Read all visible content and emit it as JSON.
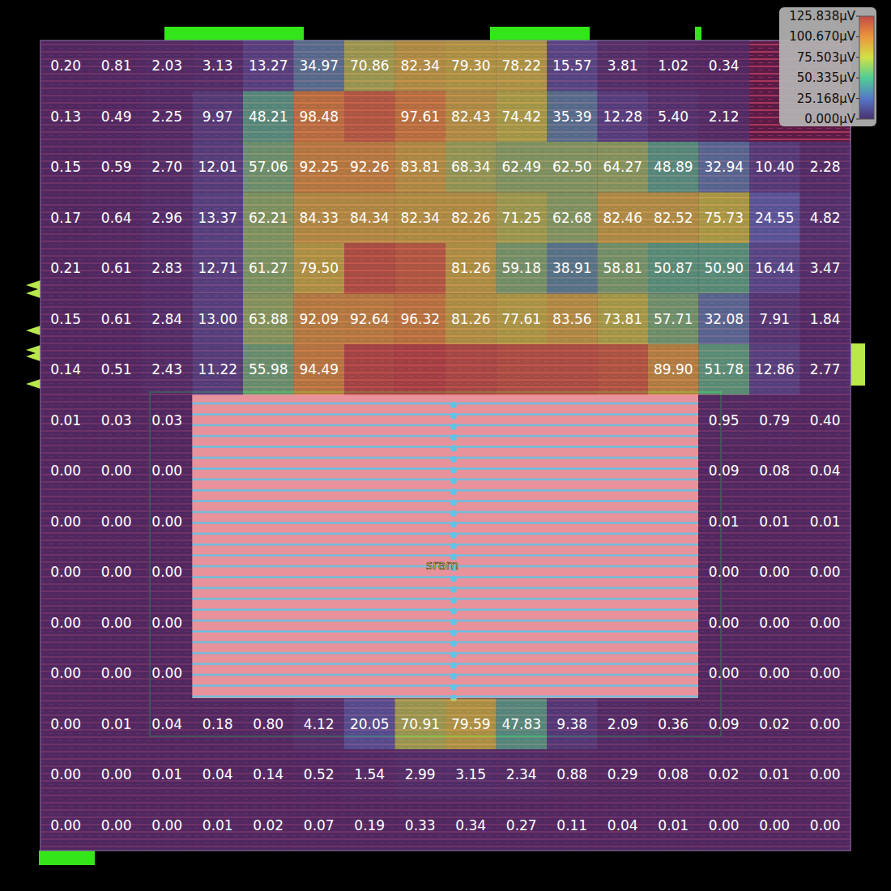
{
  "chart_data": {
    "type": "heatmap",
    "annotations": [
      "sram"
    ],
    "data_labels": true,
    "tick_labels": false,
    "cells": [
      [
        0.2,
        0.81,
        2.03,
        3.13,
        13.27,
        34.97,
        70.86,
        82.34,
        79.3,
        78.22,
        15.57,
        3.81,
        1.02,
        0.34,
        null,
        null
      ],
      [
        0.13,
        0.49,
        2.25,
        9.97,
        48.21,
        98.48,
        110,
        97.61,
        82.43,
        74.42,
        35.39,
        12.28,
        5.4,
        2.12,
        null,
        null
      ],
      [
        0.15,
        0.59,
        2.7,
        12.01,
        57.06,
        92.25,
        92.26,
        83.81,
        68.34,
        62.49,
        62.5,
        64.27,
        48.89,
        32.94,
        10.4,
        2.28
      ],
      [
        0.17,
        0.64,
        2.96,
        13.37,
        62.21,
        84.33,
        84.34,
        82.34,
        82.26,
        71.25,
        62.68,
        82.46,
        82.52,
        75.73,
        24.55,
        4.82
      ],
      [
        0.21,
        0.61,
        2.83,
        12.71,
        61.27,
        79.5,
        115,
        110,
        81.26,
        59.18,
        38.91,
        58.81,
        50.87,
        50.9,
        16.44,
        3.47
      ],
      [
        0.15,
        0.61,
        2.84,
        13.0,
        63.88,
        92.09,
        92.64,
        96.32,
        81.26,
        77.61,
        83.56,
        73.81,
        57.71,
        32.08,
        7.91,
        1.84
      ],
      [
        0.14,
        0.51,
        2.43,
        11.22,
        55.98,
        94.49,
        120,
        122,
        118,
        115,
        115,
        112,
        89.9,
        51.78,
        12.86,
        2.77
      ],
      [
        0.01,
        0.03,
        0.03,
        null,
        null,
        null,
        null,
        null,
        null,
        null,
        null,
        null,
        null,
        0.95,
        0.79,
        0.4
      ],
      [
        0.0,
        0.0,
        0.0,
        null,
        null,
        null,
        null,
        null,
        null,
        null,
        null,
        null,
        null,
        0.09,
        0.08,
        0.04
      ],
      [
        0.0,
        0.0,
        0.0,
        null,
        null,
        null,
        null,
        null,
        null,
        null,
        null,
        null,
        null,
        0.01,
        0.01,
        0.01
      ],
      [
        0.0,
        0.0,
        0.0,
        null,
        null,
        null,
        null,
        null,
        null,
        null,
        null,
        null,
        null,
        0.0,
        0.0,
        0.0
      ],
      [
        0.0,
        0.0,
        0.0,
        null,
        null,
        null,
        null,
        null,
        null,
        null,
        null,
        null,
        null,
        0.0,
        0.0,
        0.0
      ],
      [
        0.0,
        0.0,
        0.0,
        null,
        null,
        null,
        null,
        null,
        null,
        null,
        null,
        null,
        null,
        0.0,
        0.0,
        0.0
      ],
      [
        0.0,
        0.01,
        0.04,
        0.18,
        0.8,
        4.12,
        20.05,
        70.91,
        79.59,
        47.83,
        9.38,
        2.09,
        0.36,
        0.09,
        0.02,
        0.0
      ],
      [
        0.0,
        0.0,
        0.01,
        0.04,
        0.14,
        0.52,
        1.54,
        2.99,
        3.15,
        2.34,
        0.88,
        0.29,
        0.08,
        0.02,
        0.01,
        0.0
      ],
      [
        0.0,
        0.0,
        0.0,
        0.01,
        0.02,
        0.07,
        0.19,
        0.33,
        0.34,
        0.27,
        0.11,
        0.04,
        0.01,
        0.0,
        0.0,
        0.0
      ]
    ],
    "value_labels": [
      [
        "0.20",
        "0.81",
        "2.03",
        "3.13",
        "13.27",
        "34.97",
        "70.86",
        "82.34",
        "79.30",
        "78.22",
        "15.57",
        "3.81",
        "1.02",
        "0.34",
        null,
        null
      ],
      [
        "0.13",
        "0.49",
        "2.25",
        "9.97",
        "48.21",
        "98.48",
        null,
        "97.61",
        "82.43",
        "74.42",
        "35.39",
        "12.28",
        "5.40",
        "2.12",
        null,
        null
      ],
      [
        "0.15",
        "0.59",
        "2.70",
        "12.01",
        "57.06",
        "92.25",
        "92.26",
        "83.81",
        "68.34",
        "62.49",
        "62.50",
        "64.27",
        "48.89",
        "32.94",
        "10.40",
        "2.28"
      ],
      [
        "0.17",
        "0.64",
        "2.96",
        "13.37",
        "62.21",
        "84.33",
        "84.34",
        "82.34",
        "82.26",
        "71.25",
        "62.68",
        "82.46",
        "82.52",
        "75.73",
        "24.55",
        "4.82"
      ],
      [
        "0.21",
        "0.61",
        "2.83",
        "12.71",
        "61.27",
        "79.50",
        null,
        null,
        "81.26",
        "59.18",
        "38.91",
        "58.81",
        "50.87",
        "50.90",
        "16.44",
        "3.47"
      ],
      [
        "0.15",
        "0.61",
        "2.84",
        "13.00",
        "63.88",
        "92.09",
        "92.64",
        "96.32",
        "81.26",
        "77.61",
        "83.56",
        "73.81",
        "57.71",
        "32.08",
        "7.91",
        "1.84"
      ],
      [
        "0.14",
        "0.51",
        "2.43",
        "11.22",
        "55.98",
        "94.49",
        null,
        null,
        null,
        null,
        null,
        null,
        "89.90",
        "51.78",
        "12.86",
        "2.77"
      ],
      [
        "0.01",
        "0.03",
        "0.03",
        null,
        null,
        null,
        null,
        null,
        null,
        null,
        null,
        null,
        null,
        "0.95",
        "0.79",
        "0.40"
      ],
      [
        "0.00",
        "0.00",
        "0.00",
        null,
        null,
        null,
        null,
        null,
        null,
        null,
        null,
        null,
        null,
        "0.09",
        "0.08",
        "0.04"
      ],
      [
        "0.00",
        "0.00",
        "0.00",
        null,
        null,
        null,
        null,
        null,
        null,
        null,
        null,
        null,
        null,
        "0.01",
        "0.01",
        "0.01"
      ],
      [
        "0.00",
        "0.00",
        "0.00",
        null,
        null,
        null,
        null,
        null,
        null,
        null,
        null,
        null,
        null,
        "0.00",
        "0.00",
        "0.00"
      ],
      [
        "0.00",
        "0.00",
        "0.00",
        null,
        null,
        null,
        null,
        null,
        null,
        null,
        null,
        null,
        null,
        "0.00",
        "0.00",
        "0.00"
      ],
      [
        "0.00",
        "0.00",
        "0.00",
        null,
        null,
        null,
        null,
        null,
        null,
        null,
        null,
        null,
        null,
        "0.00",
        "0.00",
        "0.00"
      ],
      [
        "0.00",
        "0.01",
        "0.04",
        "0.18",
        "0.80",
        "4.12",
        "20.05",
        "70.91",
        "79.59",
        "47.83",
        "9.38",
        "2.09",
        "0.36",
        "0.09",
        "0.02",
        "0.00"
      ],
      [
        "0.00",
        "0.00",
        "0.01",
        "0.04",
        "0.14",
        "0.52",
        "1.54",
        "2.99",
        "3.15",
        "2.34",
        "0.88",
        "0.29",
        "0.08",
        "0.02",
        "0.01",
        "0.00"
      ],
      [
        "0.00",
        "0.00",
        "0.00",
        "0.01",
        "0.02",
        "0.07",
        "0.19",
        "0.33",
        "0.34",
        "0.27",
        "0.11",
        "0.04",
        "0.01",
        "0.00",
        "0.00",
        "0.00"
      ]
    ],
    "colorbar_range": [
      0,
      125.838
    ],
    "colorbar_ticks": [
      {
        "value": 125.838,
        "label": "125.838µV"
      },
      {
        "value": 100.67,
        "label": "100.670µV"
      },
      {
        "value": 75.503,
        "label": "75.503µV"
      },
      {
        "value": 50.335,
        "label": "50.335µV"
      },
      {
        "value": 25.168,
        "label": "25.168µV"
      },
      {
        "value": 0,
        "label": "0.000µV"
      }
    ]
  }
}
